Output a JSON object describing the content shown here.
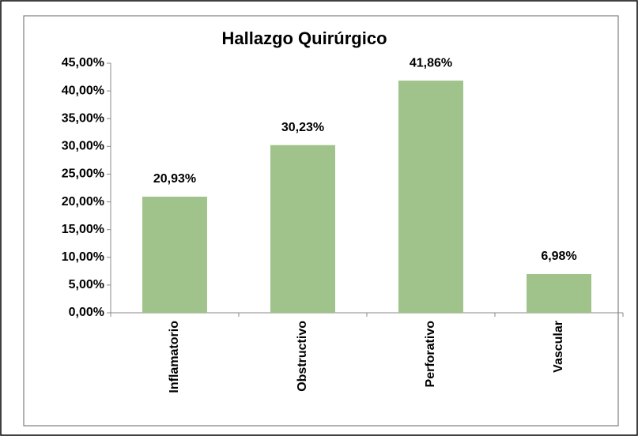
{
  "chart_data": {
    "type": "bar",
    "title": "Hallazgo Quirúrgico",
    "categories": [
      "Inflamatorio",
      "Obstructivo",
      "Perforativo",
      "Vascular"
    ],
    "values": [
      20.93,
      30.23,
      41.86,
      6.98
    ],
    "value_labels": [
      "20,93%",
      "30,23%",
      "41,86%",
      "6,98%"
    ],
    "color": "#9fc38a",
    "ylim": [
      0,
      45
    ],
    "yticks": [
      {
        "value": 0,
        "label": "0,00%"
      },
      {
        "value": 5,
        "label": "5,00%"
      },
      {
        "value": 10,
        "label": "10,00%"
      },
      {
        "value": 15,
        "label": "15,00%"
      },
      {
        "value": 20,
        "label": "20,00%"
      },
      {
        "value": 25,
        "label": "25,00%"
      },
      {
        "value": 30,
        "label": "30,00%"
      },
      {
        "value": 35,
        "label": "35,00%"
      },
      {
        "value": 40,
        "label": "40,00%"
      },
      {
        "value": 45,
        "label": "45,00%"
      }
    ],
    "grid": false
  }
}
